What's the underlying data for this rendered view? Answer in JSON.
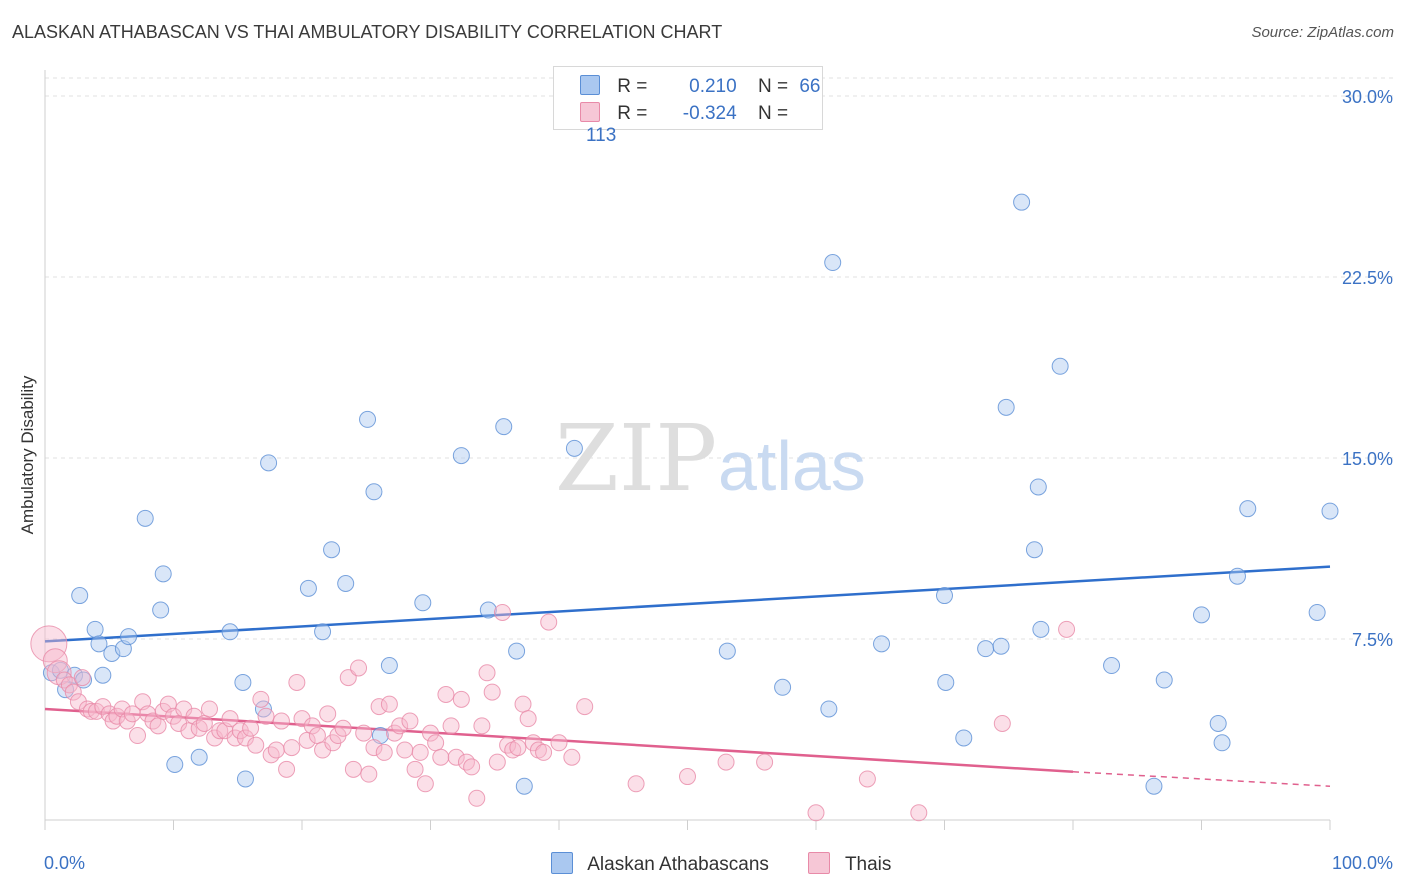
{
  "header": {
    "title": "ALASKAN ATHABASCAN VS THAI AMBULATORY DISABILITY CORRELATION CHART",
    "source": "Source: ZipAtlas.com"
  },
  "watermark": {
    "part1": "ZIP",
    "part2": "atlas"
  },
  "legend": {
    "rows": [
      {
        "r_label": "R =",
        "r_value": "0.210",
        "n_label": "N =",
        "n_value": "66",
        "color": "#aac8f0"
      },
      {
        "r_label": "R =",
        "r_value": "-0.324",
        "n_label": "N =",
        "n_value": "113",
        "color": "#f6b8cc"
      }
    ]
  },
  "bottom_legend": [
    {
      "label": "Alaskan Athabascans",
      "color": "#aac8f0"
    },
    {
      "label": "Thais",
      "color": "#f6b8cc"
    }
  ],
  "chart_data": {
    "type": "scatter",
    "title": "ALASKAN ATHABASCAN VS THAI AMBULATORY DISABILITY CORRELATION CHART",
    "xlabel": "",
    "ylabel": "Ambulatory Disability",
    "xlim": [
      0,
      100
    ],
    "ylim": [
      0,
      31
    ],
    "x_tick_labels": [
      "0.0%",
      "100.0%"
    ],
    "y_ticks": [
      7.5,
      15.0,
      22.5,
      30.0
    ],
    "y_tick_labels": [
      "7.5%",
      "15.0%",
      "22.5%",
      "30.0%"
    ],
    "grid": true,
    "legend_position": "top-center",
    "series": [
      {
        "name": "Alaskan Athabascans",
        "color": "#5b8fd6",
        "fill": "#aac8f0",
        "trend": {
          "x": [
            0,
            100
          ],
          "y": [
            7.4,
            10.5
          ],
          "color": "#2f6fcc"
        },
        "points": [
          [
            0.5,
            6.1
          ],
          [
            1.2,
            6.2
          ],
          [
            1.6,
            5.4
          ],
          [
            2.3,
            6.0
          ],
          [
            3.0,
            5.8
          ],
          [
            2.7,
            9.3
          ],
          [
            3.9,
            7.9
          ],
          [
            4.2,
            7.3
          ],
          [
            4.5,
            6.0
          ],
          [
            5.2,
            6.9
          ],
          [
            6.1,
            7.1
          ],
          [
            6.5,
            7.6
          ],
          [
            7.8,
            12.5
          ],
          [
            9.0,
            8.7
          ],
          [
            9.2,
            10.2
          ],
          [
            10.1,
            2.3
          ],
          [
            12.0,
            2.6
          ],
          [
            14.4,
            7.8
          ],
          [
            15.4,
            5.7
          ],
          [
            15.6,
            1.7
          ],
          [
            17.0,
            4.6
          ],
          [
            17.4,
            14.8
          ],
          [
            20.5,
            9.6
          ],
          [
            21.6,
            7.8
          ],
          [
            22.3,
            11.2
          ],
          [
            23.4,
            9.8
          ],
          [
            25.1,
            16.6
          ],
          [
            25.6,
            13.6
          ],
          [
            26.1,
            3.5
          ],
          [
            26.8,
            6.4
          ],
          [
            29.4,
            9.0
          ],
          [
            32.4,
            15.1
          ],
          [
            34.5,
            8.7
          ],
          [
            35.7,
            16.3
          ],
          [
            36.7,
            7.0
          ],
          [
            37.3,
            1.4
          ],
          [
            41.2,
            15.4
          ],
          [
            53.1,
            7.0
          ],
          [
            57.4,
            5.5
          ],
          [
            61.3,
            23.1
          ],
          [
            61.0,
            4.6
          ],
          [
            65.1,
            7.3
          ],
          [
            70.0,
            9.3
          ],
          [
            70.1,
            5.7
          ],
          [
            71.5,
            3.4
          ],
          [
            73.2,
            7.1
          ],
          [
            74.4,
            7.2
          ],
          [
            74.8,
            17.1
          ],
          [
            76.0,
            25.6
          ],
          [
            77.3,
            13.8
          ],
          [
            77.0,
            11.2
          ],
          [
            77.5,
            7.9
          ],
          [
            79.0,
            18.8
          ],
          [
            83.0,
            6.4
          ],
          [
            86.3,
            1.4
          ],
          [
            87.1,
            5.8
          ],
          [
            90.0,
            8.5
          ],
          [
            91.3,
            4.0
          ],
          [
            91.6,
            3.2
          ],
          [
            92.8,
            10.1
          ],
          [
            93.6,
            12.9
          ],
          [
            99.0,
            8.6
          ],
          [
            100.0,
            12.8
          ]
        ]
      },
      {
        "name": "Thais",
        "color": "#e88aa8",
        "fill": "#f6b8cc",
        "trend": {
          "x": [
            0,
            80
          ],
          "y": [
            4.6,
            2.0
          ],
          "dashed_to": [
            100,
            1.4
          ],
          "color": "#e0608e"
        },
        "points": [
          [
            0.3,
            7.3
          ],
          [
            0.8,
            6.6
          ],
          [
            1.1,
            6.1
          ],
          [
            1.5,
            5.8
          ],
          [
            1.9,
            5.6
          ],
          [
            2.2,
            5.3
          ],
          [
            2.6,
            4.9
          ],
          [
            2.9,
            5.9
          ],
          [
            3.3,
            4.6
          ],
          [
            3.6,
            4.5
          ],
          [
            4.0,
            4.5
          ],
          [
            4.5,
            4.7
          ],
          [
            5.0,
            4.4
          ],
          [
            5.3,
            4.1
          ],
          [
            5.6,
            4.3
          ],
          [
            6.0,
            4.6
          ],
          [
            6.4,
            4.1
          ],
          [
            6.8,
            4.4
          ],
          [
            7.2,
            3.5
          ],
          [
            7.6,
            4.9
          ],
          [
            8.0,
            4.4
          ],
          [
            8.4,
            4.1
          ],
          [
            8.8,
            3.9
          ],
          [
            9.2,
            4.5
          ],
          [
            9.6,
            4.8
          ],
          [
            10.0,
            4.3
          ],
          [
            10.4,
            4.0
          ],
          [
            10.8,
            4.6
          ],
          [
            11.2,
            3.7
          ],
          [
            11.6,
            4.3
          ],
          [
            12.0,
            3.8
          ],
          [
            12.4,
            4.0
          ],
          [
            12.8,
            4.6
          ],
          [
            13.2,
            3.4
          ],
          [
            13.6,
            3.7
          ],
          [
            14.0,
            3.7
          ],
          [
            14.4,
            4.2
          ],
          [
            14.8,
            3.4
          ],
          [
            15.2,
            3.7
          ],
          [
            15.6,
            3.4
          ],
          [
            16.0,
            3.8
          ],
          [
            16.4,
            3.1
          ],
          [
            16.8,
            5.0
          ],
          [
            17.2,
            4.3
          ],
          [
            17.6,
            2.7
          ],
          [
            18.0,
            2.9
          ],
          [
            18.4,
            4.1
          ],
          [
            18.8,
            2.1
          ],
          [
            19.2,
            3.0
          ],
          [
            19.6,
            5.7
          ],
          [
            20.0,
            4.2
          ],
          [
            20.4,
            3.3
          ],
          [
            20.8,
            3.9
          ],
          [
            21.2,
            3.5
          ],
          [
            21.6,
            2.9
          ],
          [
            22.0,
            4.4
          ],
          [
            22.4,
            3.2
          ],
          [
            22.8,
            3.5
          ],
          [
            23.2,
            3.8
          ],
          [
            23.6,
            5.9
          ],
          [
            24.0,
            2.1
          ],
          [
            24.4,
            6.3
          ],
          [
            24.8,
            3.6
          ],
          [
            25.2,
            1.9
          ],
          [
            25.6,
            3.0
          ],
          [
            26.0,
            4.7
          ],
          [
            26.4,
            2.8
          ],
          [
            26.8,
            4.8
          ],
          [
            27.2,
            3.6
          ],
          [
            27.6,
            3.9
          ],
          [
            28.0,
            2.9
          ],
          [
            28.4,
            4.1
          ],
          [
            28.8,
            2.1
          ],
          [
            29.2,
            2.8
          ],
          [
            29.6,
            1.5
          ],
          [
            30.0,
            3.6
          ],
          [
            30.4,
            3.2
          ],
          [
            30.8,
            2.6
          ],
          [
            31.2,
            5.2
          ],
          [
            31.6,
            3.9
          ],
          [
            32.0,
            2.6
          ],
          [
            32.4,
            5.0
          ],
          [
            32.8,
            2.4
          ],
          [
            33.2,
            2.2
          ],
          [
            33.6,
            0.9
          ],
          [
            34.0,
            3.9
          ],
          [
            34.4,
            6.1
          ],
          [
            34.8,
            5.3
          ],
          [
            35.2,
            2.4
          ],
          [
            35.6,
            8.6
          ],
          [
            36.0,
            3.1
          ],
          [
            36.4,
            2.9
          ],
          [
            36.8,
            3.0
          ],
          [
            37.2,
            4.8
          ],
          [
            37.6,
            4.2
          ],
          [
            38.0,
            3.2
          ],
          [
            38.4,
            2.9
          ],
          [
            38.8,
            2.8
          ],
          [
            39.2,
            8.2
          ],
          [
            40.0,
            3.2
          ],
          [
            41.0,
            2.6
          ],
          [
            42.0,
            4.7
          ],
          [
            46.0,
            1.5
          ],
          [
            50.0,
            1.8
          ],
          [
            53.0,
            2.4
          ],
          [
            56.0,
            2.4
          ],
          [
            60.0,
            0.3
          ],
          [
            64.0,
            1.7
          ],
          [
            68.0,
            0.3
          ],
          [
            74.5,
            4.0
          ],
          [
            79.5,
            7.9
          ]
        ]
      }
    ]
  }
}
